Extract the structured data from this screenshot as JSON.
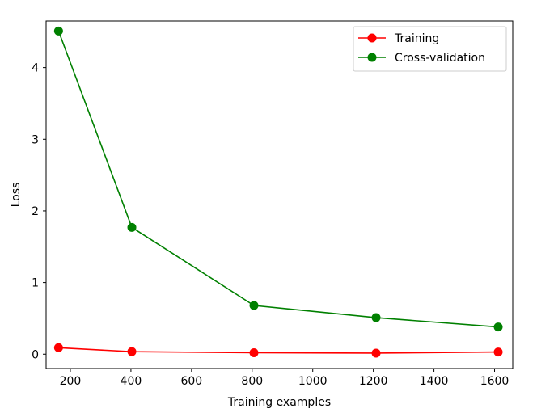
{
  "chart_data": {
    "type": "line",
    "title": "",
    "xlabel": "Training examples",
    "ylabel": "Loss",
    "xlim": [
      120,
      1660
    ],
    "ylim": [
      -0.2,
      4.65
    ],
    "x_ticks": [
      200,
      400,
      600,
      800,
      1000,
      1200,
      1400,
      1600
    ],
    "y_ticks": [
      0,
      1,
      2,
      3,
      4
    ],
    "grid": false,
    "legend_position": "top-right",
    "x": [
      161,
      403,
      806,
      1209,
      1612
    ],
    "series": [
      {
        "name": "Training",
        "color": "#ff0000",
        "marker": "circle",
        "values": [
          0.09,
          0.035,
          0.02,
          0.015,
          0.03
        ]
      },
      {
        "name": "Cross-validation",
        "color": "#008000",
        "marker": "circle",
        "values": [
          4.51,
          1.77,
          0.68,
          0.51,
          0.38
        ]
      }
    ]
  }
}
